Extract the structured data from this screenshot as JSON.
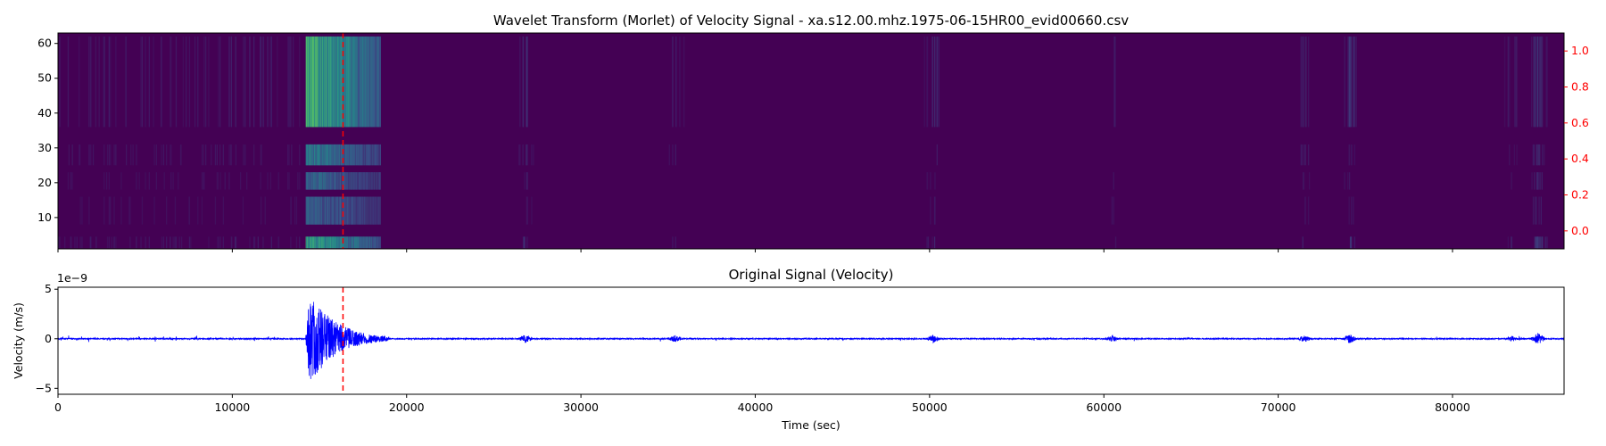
{
  "chart_data": [
    {
      "type": "heatmap",
      "title": "Wavelet Transform (Morlet) of Velocity Signal - xa.s12.00.mhz.1975-06-15HR00_evid00660.csv",
      "xlabel": "",
      "ylabel": "",
      "xlim": [
        0,
        86400
      ],
      "ylim": [
        1,
        63
      ],
      "y_ticks": [
        10,
        20,
        30,
        40,
        50,
        60
      ],
      "secondary_y": {
        "ylim": [
          -0.1,
          1.1
        ],
        "ticks": [
          "0.0",
          "0.2",
          "0.4",
          "0.6",
          "0.8",
          "1.0"
        ],
        "ticks_color": "#ff0000"
      },
      "colormap": "viridis",
      "marker_line": {
        "x": 16350,
        "color": "#ff0000",
        "style": "dashed"
      },
      "event": {
        "start": 14200,
        "end": 18500
      }
    },
    {
      "type": "line",
      "title": "Original Signal (Velocity)",
      "xlabel": "Time (sec)",
      "ylabel": "Velocity (m/s)",
      "offset_text": "1e−9",
      "xlim": [
        0,
        86400
      ],
      "ylim": [
        -5.6,
        5.2
      ],
      "x_ticks": [
        "0",
        "10000",
        "20000",
        "30000",
        "40000",
        "50000",
        "60000",
        "70000",
        "80000"
      ],
      "y_ticks": [
        "−5",
        "0",
        "5"
      ],
      "series": [
        {
          "color": "#0000ff",
          "peak_amplitude": 4.7,
          "event_start": 14200,
          "event_end": 19000
        }
      ],
      "marker_line": {
        "x": 16350,
        "color": "#ff0000",
        "style": "dashed"
      }
    }
  ]
}
